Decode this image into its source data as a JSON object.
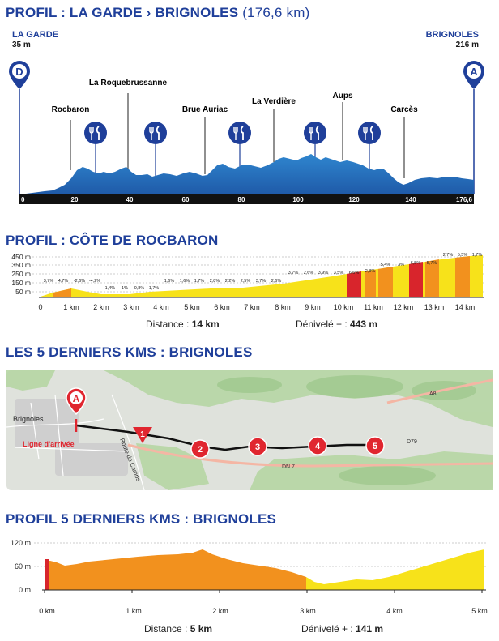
{
  "colors": {
    "brand_blue": "#1f3f9a",
    "profile_blue": "#2a6fc0",
    "finish_red": "#e0262f",
    "climb_yellow": "#f7e21a",
    "climb_orange": "#f2911e",
    "climb_red": "#d8252c"
  },
  "section1": {
    "title_bold": "PROFIL : LA GARDE › BRIGNOLES",
    "title_light": "(176,6 km)",
    "start_name": "LA GARDE",
    "start_alt": "35 m",
    "end_name": "BRIGNOLES",
    "end_alt": "216 m",
    "start_marker": "D",
    "end_marker": "A",
    "towns": [
      "Rocbaron",
      "La Roquebrussanne",
      "Brue Auriac",
      "La Verdière",
      "Aups",
      "Carcès"
    ],
    "feed_icon": "fork-knife-icon",
    "axis_ticks": [
      "0",
      "20",
      "40",
      "60",
      "80",
      "100",
      "120",
      "140",
      "176,6"
    ]
  },
  "section2": {
    "title": "PROFIL : CÔTE DE ROCBARON",
    "y_ticks": [
      "450 m",
      "350 m",
      "250 m",
      "150 m",
      "50 m"
    ],
    "x_ticks": [
      "0",
      "1 km",
      "2 km",
      "3 km",
      "4 km",
      "5 km",
      "6 km",
      "7 km",
      "8 km",
      "9 km",
      "10 km",
      "11 km",
      "12 km",
      "13 km",
      "14 km"
    ],
    "grade_labels": [
      "3,7%",
      "4,7%",
      "-2,6%",
      "-4,2%",
      "-1,4%",
      "1%",
      "0,8%",
      "1,7%",
      "1,6%",
      "1,6%",
      "1,7%",
      "2,8%",
      "2,2%",
      "2,5%",
      "3,7%",
      "2,6%",
      "3,7%",
      "2,6%",
      "3,9%",
      "3,5%",
      "6,6%",
      "2,8%",
      "5,4%",
      "3%",
      "6,5%",
      "5,7%",
      "2,7%",
      "5,5%",
      "1,7%"
    ],
    "distance_label": "Distance : ",
    "distance_value": "14 km",
    "elevation_label": "Dénivelé + : ",
    "elevation_value": "443 m"
  },
  "section3": {
    "title": "LES 5 DERNIERS KMS : BRIGNOLES",
    "place_label": "Brignoles",
    "finish_line_label": "Ligne d'arrivée",
    "finish_marker": "A",
    "road_label_1": "Route de Camps",
    "road_label_2": "DN 7",
    "road_label_3": "D79",
    "road_label_4": "A8",
    "km_markers": [
      "1",
      "2",
      "3",
      "4",
      "5"
    ]
  },
  "section4": {
    "title": "PROFIL 5 DERNIERS KMS : BRIGNOLES",
    "y_ticks": [
      "120 m",
      "60 m",
      "0 m"
    ],
    "x_ticks": [
      "0 km",
      "1 km",
      "2 km",
      "3 km",
      "4 km",
      "5 km"
    ],
    "distance_label": "Distance : ",
    "distance_value": "5 km",
    "elevation_label": "Dénivelé + : ",
    "elevation_value": "141 m"
  }
}
